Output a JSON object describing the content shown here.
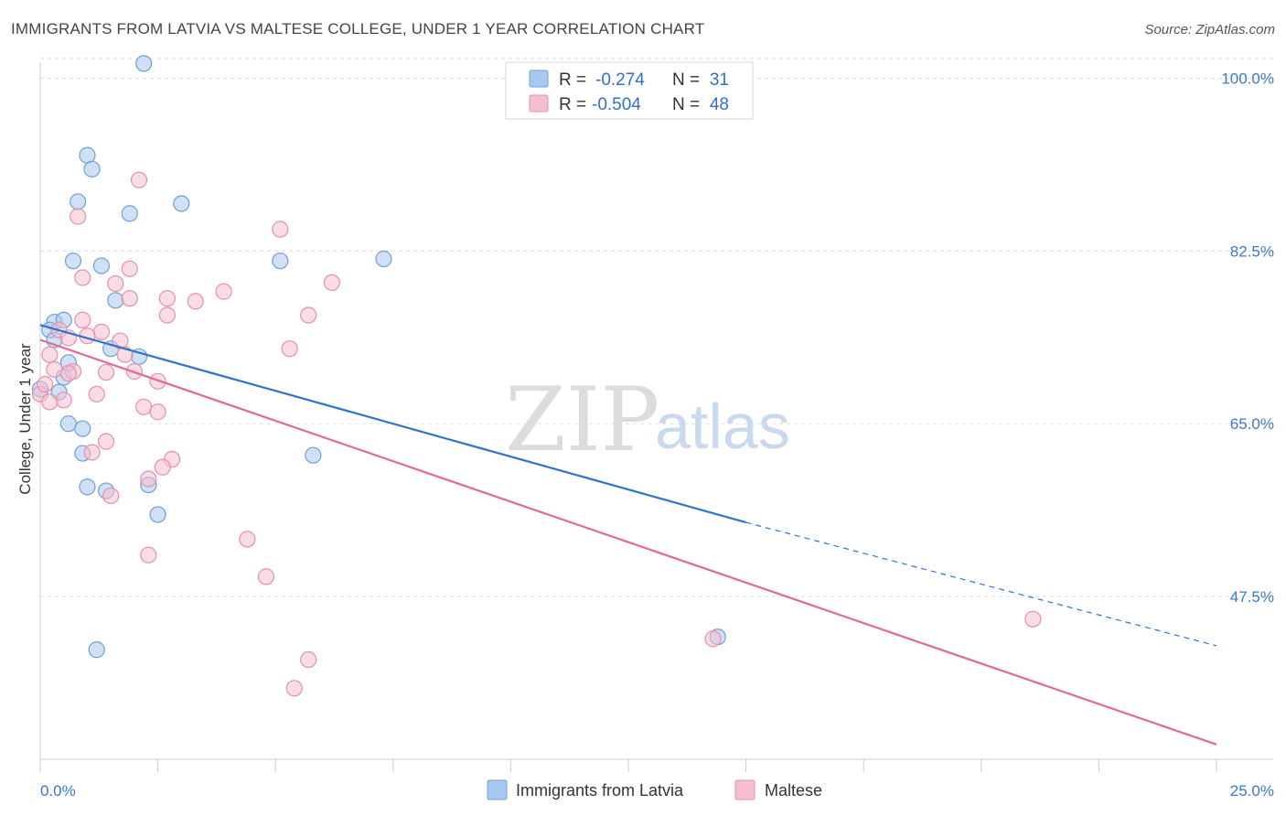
{
  "title": "IMMIGRANTS FROM LATVIA VS MALTESE COLLEGE, UNDER 1 YEAR CORRELATION CHART",
  "source": "Source: ZipAtlas.com",
  "watermark": {
    "zip": "ZIP",
    "atlas": "atlas"
  },
  "colors": {
    "latvia_fill": "#a9c8ef",
    "latvia_stroke": "#6e9fd9",
    "latvia_line": "#2f73d0",
    "maltese_fill": "#f6bfcf",
    "maltese_stroke": "#e690ab",
    "maltese_line": "#e2689a",
    "grid": "#dddddd",
    "axis_text": "#3b78c8"
  },
  "legend": {
    "rows": [
      {
        "r_label": "R =",
        "r_value": "-0.274",
        "n_label": "N =",
        "n_value": "31"
      },
      {
        "r_label": "R =",
        "r_value": "-0.504",
        "n_label": "N =",
        "n_value": "48"
      }
    ]
  },
  "chart_data": {
    "type": "scatter",
    "title": "IMMIGRANTS FROM LATVIA VS MALTESE COLLEGE, UNDER 1 YEAR CORRELATION CHART",
    "xlabel": "",
    "ylabel": "College, Under 1 year",
    "xlim": [
      0,
      25
    ],
    "ylim": [
      31,
      102
    ],
    "x_tick_labels": [
      "0.0%",
      "25.0%"
    ],
    "y_ticks": [
      47.5,
      65.0,
      82.5,
      100.0
    ],
    "y_tick_labels": [
      "47.5%",
      "65.0%",
      "82.5%",
      "100.0%"
    ],
    "grid": true,
    "legend_position": "top-center",
    "series": [
      {
        "name": "Immigrants from Latvia",
        "points": [
          [
            2.2,
            101.5
          ],
          [
            1.0,
            92.2
          ],
          [
            1.1,
            90.8
          ],
          [
            0.8,
            87.5
          ],
          [
            1.9,
            86.3
          ],
          [
            3.0,
            87.3
          ],
          [
            0.7,
            81.5
          ],
          [
            1.3,
            81.0
          ],
          [
            5.1,
            81.5
          ],
          [
            7.3,
            81.7
          ],
          [
            1.6,
            77.5
          ],
          [
            0.3,
            75.3
          ],
          [
            0.5,
            75.5
          ],
          [
            0.2,
            74.5
          ],
          [
            0.3,
            73.5
          ],
          [
            1.5,
            72.6
          ],
          [
            2.1,
            71.8
          ],
          [
            0.6,
            71.2
          ],
          [
            0.5,
            69.7
          ],
          [
            0.0,
            68.5
          ],
          [
            0.6,
            65.0
          ],
          [
            0.9,
            64.5
          ],
          [
            0.9,
            62.0
          ],
          [
            1.0,
            58.6
          ],
          [
            1.4,
            58.2
          ],
          [
            2.3,
            58.8
          ],
          [
            2.5,
            55.8
          ],
          [
            5.8,
            61.8
          ],
          [
            14.4,
            43.4
          ],
          [
            1.2,
            42.1
          ],
          [
            0.4,
            68.2
          ]
        ],
        "trend": {
          "x": [
            0,
            15
          ],
          "y": [
            75.0,
            55.0
          ],
          "dashed_to": [
            25,
            42.5
          ]
        }
      },
      {
        "name": "Maltese",
        "points": [
          [
            2.1,
            89.7
          ],
          [
            0.8,
            86.0
          ],
          [
            5.1,
            84.7
          ],
          [
            0.9,
            79.8
          ],
          [
            1.6,
            79.2
          ],
          [
            6.2,
            79.3
          ],
          [
            1.9,
            80.7
          ],
          [
            1.9,
            77.7
          ],
          [
            2.7,
            77.7
          ],
          [
            3.3,
            77.4
          ],
          [
            3.9,
            78.4
          ],
          [
            2.7,
            76.0
          ],
          [
            5.7,
            76.0
          ],
          [
            0.9,
            75.5
          ],
          [
            0.4,
            74.5
          ],
          [
            1.3,
            74.3
          ],
          [
            1.0,
            73.9
          ],
          [
            0.6,
            73.7
          ],
          [
            1.7,
            73.4
          ],
          [
            5.3,
            72.6
          ],
          [
            0.2,
            72.0
          ],
          [
            1.8,
            72.0
          ],
          [
            1.4,
            70.2
          ],
          [
            2.0,
            70.3
          ],
          [
            0.7,
            70.3
          ],
          [
            0.6,
            70.1
          ],
          [
            2.5,
            69.3
          ],
          [
            1.2,
            68.0
          ],
          [
            0.5,
            67.4
          ],
          [
            2.2,
            66.7
          ],
          [
            2.5,
            66.2
          ],
          [
            1.4,
            63.2
          ],
          [
            1.1,
            62.1
          ],
          [
            2.8,
            61.4
          ],
          [
            2.6,
            60.6
          ],
          [
            2.3,
            59.4
          ],
          [
            1.5,
            57.7
          ],
          [
            4.4,
            53.3
          ],
          [
            2.3,
            51.7
          ],
          [
            4.8,
            49.5
          ],
          [
            5.7,
            41.1
          ],
          [
            5.4,
            38.2
          ],
          [
            21.1,
            45.2
          ],
          [
            14.3,
            43.2
          ],
          [
            0.0,
            68.0
          ],
          [
            0.3,
            70.5
          ],
          [
            0.1,
            69.0
          ],
          [
            0.2,
            67.2
          ]
        ],
        "trend": {
          "x": [
            0,
            25
          ],
          "y": [
            73.5,
            32.5
          ]
        }
      }
    ]
  }
}
